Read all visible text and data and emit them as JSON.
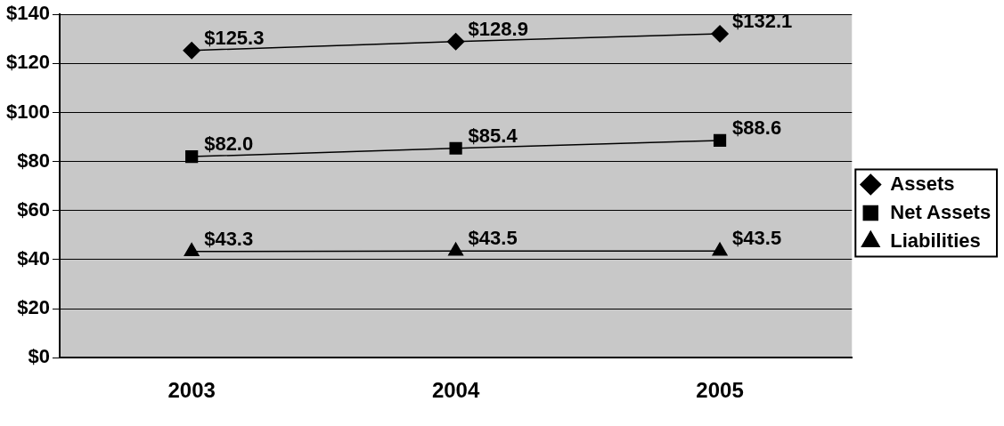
{
  "chart_data": {
    "type": "line",
    "categories": [
      "2003",
      "2004",
      "2005"
    ],
    "series": [
      {
        "name": "Assets",
        "color": "#000000",
        "marker": "diamond",
        "values": [
          125.3,
          128.9,
          132.1
        ],
        "value_labels": [
          "$125.3",
          "$128.9",
          "$132.1"
        ]
      },
      {
        "name": "Net Assets",
        "color": "#000000",
        "marker": "square",
        "values": [
          82.0,
          85.4,
          88.6
        ],
        "value_labels": [
          "$82.0",
          "$85.4",
          "$88.6"
        ]
      },
      {
        "name": "Liabilities",
        "color": "#000000",
        "marker": "triangle",
        "values": [
          43.3,
          43.5,
          43.5
        ],
        "value_labels": [
          "$43.3",
          "$43.5",
          "$43.5"
        ]
      }
    ],
    "ylim": [
      0,
      140
    ],
    "yticks": [
      {
        "value": 0,
        "label": "$0"
      },
      {
        "value": 20,
        "label": "$20"
      },
      {
        "value": 40,
        "label": "$40"
      },
      {
        "value": 60,
        "label": "$60"
      },
      {
        "value": 80,
        "label": "$80"
      },
      {
        "value": 100,
        "label": "$100"
      },
      {
        "value": 120,
        "label": "$120"
      },
      {
        "value": 140,
        "label": "$140"
      }
    ],
    "grid": "y",
    "legend": "right",
    "line_style": "solid"
  }
}
